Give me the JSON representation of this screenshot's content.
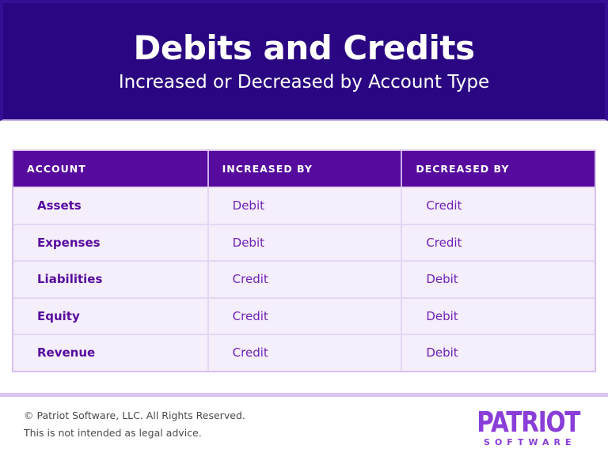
{
  "banner": {
    "title": "Debits and Credits",
    "subtitle": "Increased or Decreased by Account Type"
  },
  "chart_data": {
    "type": "table",
    "title": "Debits and Credits",
    "subtitle": "Increased or Decreased by Account Type",
    "columns": [
      "ACCOUNT",
      "INCREASED BY",
      "DECREASED BY"
    ],
    "rows": [
      [
        "Assets",
        "Debit",
        "Credit"
      ],
      [
        "Expenses",
        "Debit",
        "Credit"
      ],
      [
        "Liabilities",
        "Credit",
        "Debit"
      ],
      [
        "Equity",
        "Credit",
        "Debit"
      ],
      [
        "Revenue",
        "Credit",
        "Debit"
      ]
    ]
  },
  "footer": {
    "copyright": "© Patriot Software, LLC. All Rights Reserved.",
    "disclaimer": "This is not intended as legal advice.",
    "logo_primary": "PATRIOT",
    "logo_secondary": "SOFTWARE"
  },
  "colors": {
    "banner_bg": "#2A0682",
    "table_header_bg": "#560A9E",
    "row_bg": "#F5EEFB",
    "account_text": "#560A9E",
    "value_text": "#6F21B5",
    "table_border": "#D9C0EE",
    "footer_divider": "#DCC2F0",
    "logo_purple": "#8A3ED8",
    "footer_text": "#4A4A4A"
  }
}
